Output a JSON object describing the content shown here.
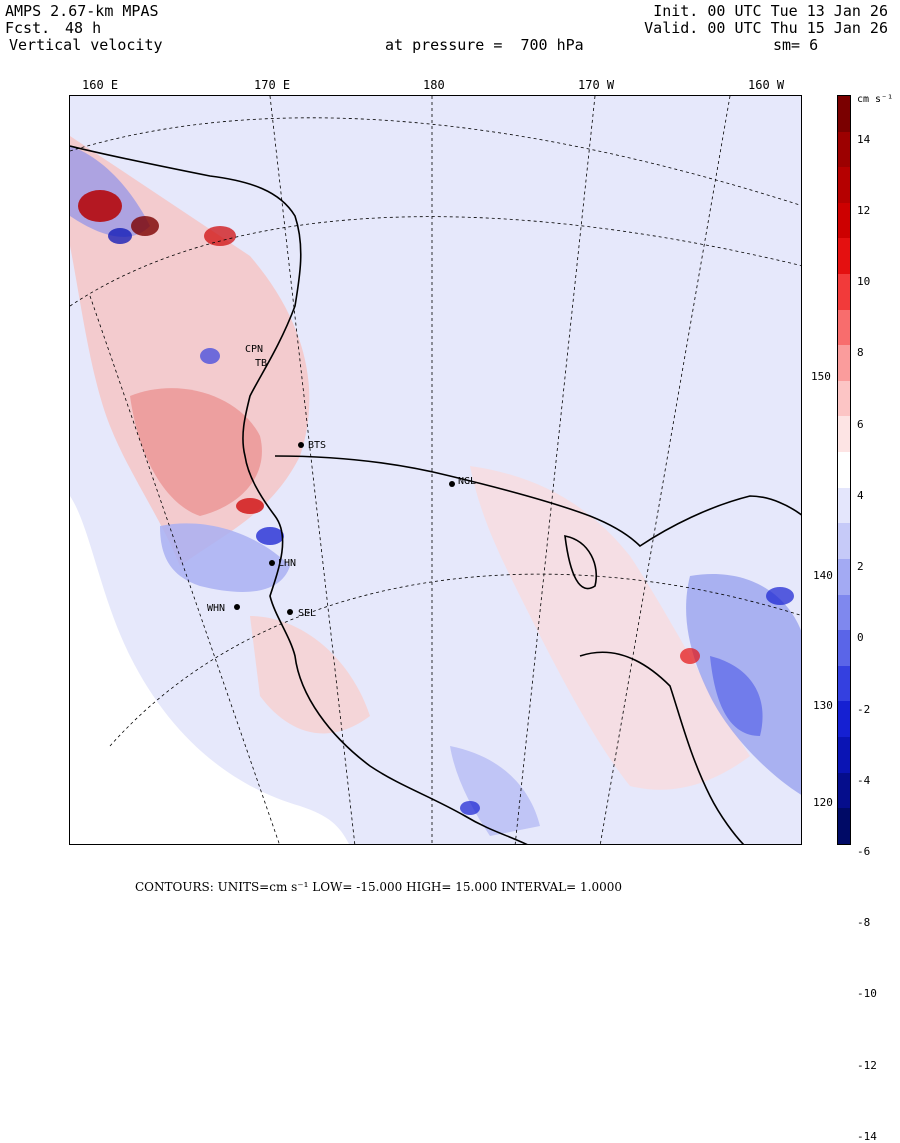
{
  "header": {
    "model": "AMPS 2.67-km MPAS",
    "fcst_label": "Fcst.",
    "fcst_value": "48 h",
    "field": "Vertical velocity",
    "init": "Init. 00 UTC Tue 13 Jan 26",
    "valid": "Valid. 00 UTC Thu 15 Jan 26",
    "pressure": "at pressure =  700 hPa",
    "smooth": "sm= 6"
  },
  "map": {
    "lon_labels": [
      "160 E",
      "170 E",
      "180",
      "170 W",
      "160 W"
    ],
    "lat_labels": [
      "150 W",
      "140 W",
      "130 W",
      "120 W"
    ],
    "stations": [
      "CPN",
      "TB",
      "BTS",
      "NGL",
      "LHN",
      "WHN",
      "SEL"
    ],
    "colors": {
      "up": "#c62828",
      "down": "#2b3fd8",
      "coast": "#000000"
    }
  },
  "colorbar": {
    "units_label": "cm s⁻¹",
    "ticks": [
      "14",
      "12",
      "10",
      "8",
      "6",
      "4",
      "2",
      "0",
      "-2",
      "-4",
      "-6",
      "-8",
      "-10",
      "-12",
      "-14"
    ],
    "colors": [
      "#7a0000",
      "#9c0000",
      "#b50000",
      "#cd0000",
      "#e41010",
      "#f23a3a",
      "#f86d6d",
      "#fa9c9c",
      "#fcc5c5",
      "#fde4e4",
      "#ffffff",
      "#e4e6fc",
      "#c6caf8",
      "#a3aaf3",
      "#7f88ee",
      "#5a65e8",
      "#3440e0",
      "#1520d2",
      "#0a14b4",
      "#050d8c",
      "#000a66"
    ]
  },
  "footer": {
    "contours": "CONTOURS:  UNITS=cm s⁻¹  LOW= -15.000      HIGH=  15.000      INTERVAL=   1.0000"
  }
}
